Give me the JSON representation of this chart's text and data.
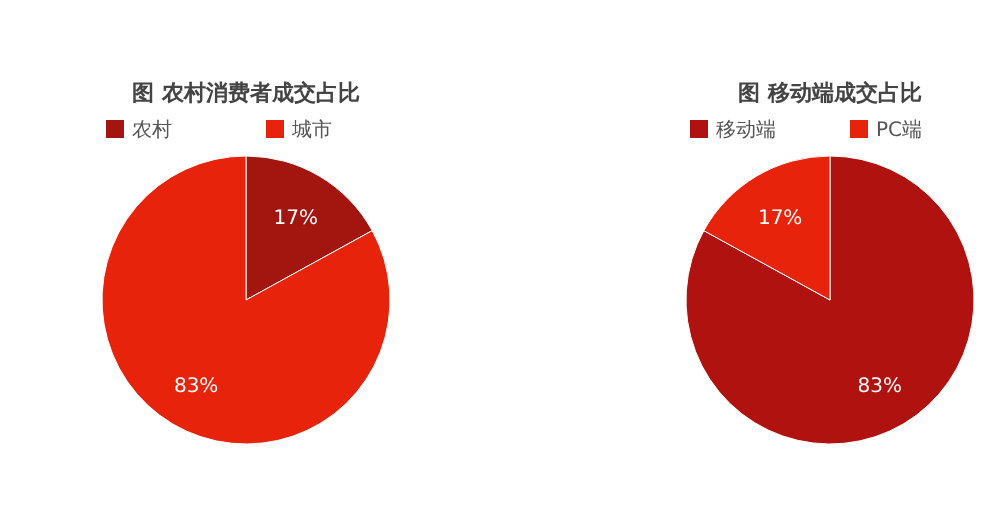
{
  "chart_data": [
    {
      "type": "pie",
      "title": "图 农村消费者成交占比",
      "categories": [
        "农村",
        "城市"
      ],
      "values": [
        17,
        83
      ],
      "colors": [
        "#a3150f",
        "#e8230c"
      ],
      "value_labels": [
        "17%",
        "83%"
      ],
      "legend": "top"
    },
    {
      "type": "pie",
      "title": "图 移动端成交占比",
      "categories": [
        "移动端",
        "PC端"
      ],
      "values": [
        83,
        17
      ],
      "colors": [
        "#b0120f",
        "#e8230c"
      ],
      "value_labels": [
        "83%",
        "17%"
      ],
      "legend": "top"
    }
  ]
}
